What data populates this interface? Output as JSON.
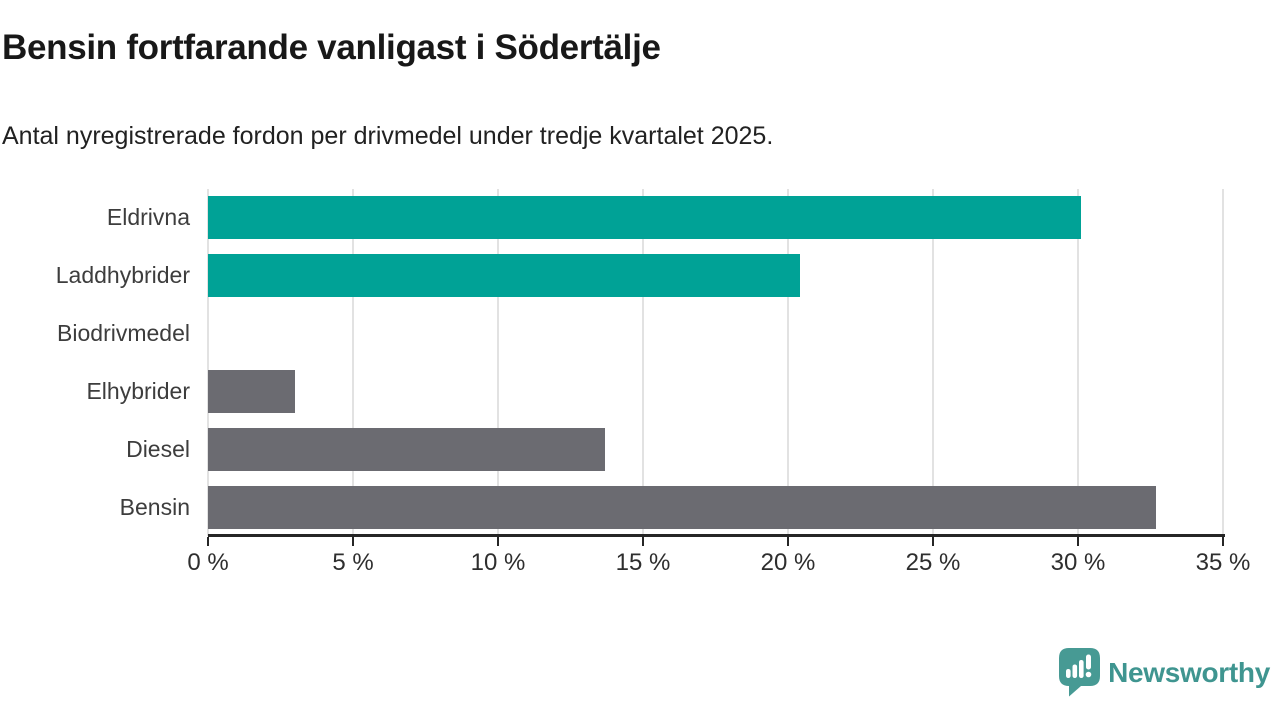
{
  "title": "Bensin fortfarande vanligast i Södertälje",
  "subtitle": "Antal nyregistrerade fordon per drivmedel under tredje kvartalet 2025.",
  "chart_data": {
    "type": "bar",
    "orientation": "horizontal",
    "title": "Bensin fortfarande vanligast i Södertälje",
    "subtitle": "Antal nyregistrerade fordon per drivmedel under tredje kvartalet 2025.",
    "categories": [
      "Eldrivna",
      "Laddhybrider",
      "Biodrivmedel",
      "Elhybrider",
      "Diesel",
      "Bensin"
    ],
    "values": [
      30.1,
      20.4,
      0,
      3.0,
      13.7,
      32.7
    ],
    "unit": "%",
    "bar_colors": [
      "#00a296",
      "#00a296",
      "#6b6b71",
      "#6b6b71",
      "#6b6b71",
      "#6b6b71"
    ],
    "xlim": [
      0,
      35
    ],
    "x_tick_values": [
      0,
      5,
      10,
      15,
      20,
      25,
      30,
      35
    ],
    "x_tick_labels": [
      "0 %",
      "5 %",
      "10 %",
      "15 %",
      "20 %",
      "25 %",
      "30 %",
      "35 %"
    ],
    "grid": true,
    "legend": false,
    "accent_color": "#00a296",
    "neutral_color": "#6b6b71",
    "gridline_color": "#e2e2e2",
    "axis_color": "#262626"
  },
  "branding": {
    "name": "Newsworthy",
    "logo_icon": "bar-chart-speech-bubble-icon",
    "text_color": "#3f9590",
    "icon_color": "#479a94"
  }
}
